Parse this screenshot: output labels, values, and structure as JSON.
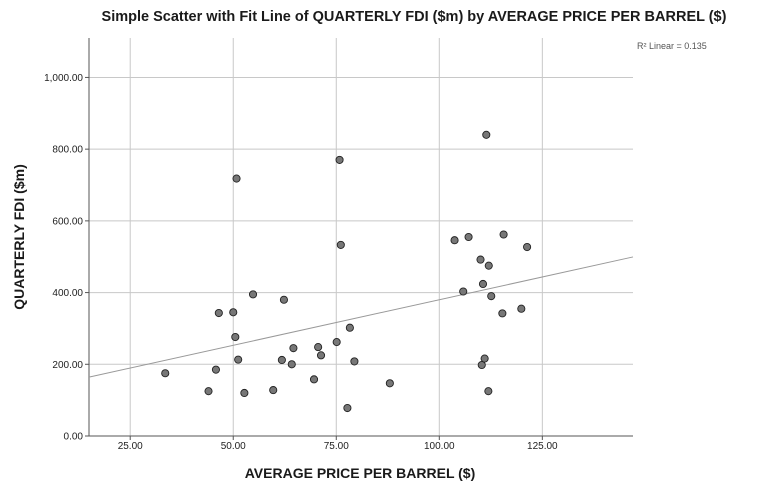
{
  "chart_data": {
    "type": "scatter",
    "title": "Simple Scatter with Fit Line of QUARTERLY FDI ($m) by AVERAGE PRICE PER BARREL ($)",
    "xlabel": "AVERAGE PRICE PER BARREL ($)",
    "ylabel": "QUARTERLY FDI ($m)",
    "annotation": "R² Linear = 0.135",
    "xlim": [
      15,
      147
    ],
    "ylim": [
      0,
      1110
    ],
    "x_ticks": [
      25,
      50,
      75,
      100,
      125
    ],
    "x_tick_labels": [
      "25.00",
      "50.00",
      "75.00",
      "100.00",
      "125.00"
    ],
    "y_ticks": [
      0,
      200,
      400,
      600,
      800,
      1000
    ],
    "y_tick_labels": [
      "0.00",
      "200.00",
      "400.00",
      "600.00",
      "800.00",
      "1,000.00"
    ],
    "grid": true,
    "point_color": "#777777",
    "line_color": "#999999",
    "grid_color": "#c8c8c8",
    "points": [
      {
        "x": 33.5,
        "y": 175
      },
      {
        "x": 44.0,
        "y": 125
      },
      {
        "x": 45.8,
        "y": 185
      },
      {
        "x": 46.5,
        "y": 343
      },
      {
        "x": 50.0,
        "y": 345
      },
      {
        "x": 50.5,
        "y": 276
      },
      {
        "x": 50.8,
        "y": 718
      },
      {
        "x": 51.2,
        "y": 213
      },
      {
        "x": 52.7,
        "y": 120
      },
      {
        "x": 54.8,
        "y": 395
      },
      {
        "x": 59.7,
        "y": 128
      },
      {
        "x": 61.8,
        "y": 212
      },
      {
        "x": 62.3,
        "y": 380
      },
      {
        "x": 64.2,
        "y": 200
      },
      {
        "x": 64.6,
        "y": 245
      },
      {
        "x": 69.6,
        "y": 158
      },
      {
        "x": 70.6,
        "y": 248
      },
      {
        "x": 71.3,
        "y": 225
      },
      {
        "x": 75.1,
        "y": 262
      },
      {
        "x": 75.8,
        "y": 770
      },
      {
        "x": 76.1,
        "y": 533
      },
      {
        "x": 77.7,
        "y": 78
      },
      {
        "x": 78.3,
        "y": 302
      },
      {
        "x": 79.4,
        "y": 208
      },
      {
        "x": 88.0,
        "y": 147
      },
      {
        "x": 103.7,
        "y": 546
      },
      {
        "x": 105.8,
        "y": 403
      },
      {
        "x": 107.1,
        "y": 555
      },
      {
        "x": 110.0,
        "y": 492
      },
      {
        "x": 110.3,
        "y": 198
      },
      {
        "x": 110.6,
        "y": 424
      },
      {
        "x": 111.0,
        "y": 216
      },
      {
        "x": 111.4,
        "y": 840
      },
      {
        "x": 112.0,
        "y": 475
      },
      {
        "x": 111.9,
        "y": 125
      },
      {
        "x": 112.6,
        "y": 390
      },
      {
        "x": 115.3,
        "y": 342
      },
      {
        "x": 115.6,
        "y": 562
      },
      {
        "x": 119.9,
        "y": 355
      },
      {
        "x": 121.3,
        "y": 527
      }
    ],
    "fit_line": {
      "slope": 2.54,
      "intercept": 126
    }
  }
}
